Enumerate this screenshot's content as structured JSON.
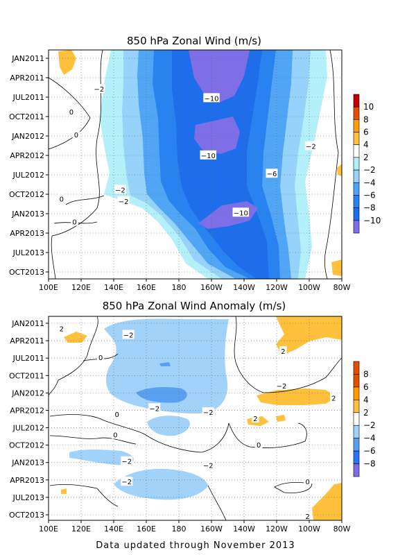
{
  "footer": "Data updated through November 2013",
  "colors": {
    "neg2": "#b4f0fa",
    "neg4": "#96d2fa",
    "neg6": "#50a5f5",
    "neg8": "#2882f0",
    "neg10": "#1e6eeb",
    "neg12": "#7f6fe6",
    "pos2": "#ffffff",
    "pos4": "#ffc03c",
    "pos6": "#ffa000",
    "pos8": "#e15000",
    "pos10": "#c00000",
    "anom_neg2": "#a0d2fa",
    "anom_neg4": "#5aa0f0",
    "anom_neg6": "#2878f0",
    "anom_neg8": "#7d6ee6",
    "anom_pos2": "#ffffff",
    "anom_pos4": "#ffc03c",
    "anom_pos6": "#ff9a00",
    "anom_pos8": "#e15000"
  },
  "chart_data": [
    {
      "type": "heatmap",
      "title": "850 hPa Zonal Wind (m/s)",
      "x_ticks": [
        "100E",
        "120E",
        "140E",
        "160E",
        "180",
        "160W",
        "140W",
        "120W",
        "100W",
        "80W"
      ],
      "y_ticks": [
        "JAN2011",
        "APR2011",
        "JUL2011",
        "OCT2011",
        "JAN2012",
        "APR2012",
        "JUL2012",
        "OCT2012",
        "JAN2013",
        "APR2013",
        "JUL2013",
        "OCT2013"
      ],
      "colorbar": [
        "10",
        "8",
        "6",
        "4",
        "2",
        "−2",
        "−4",
        "−6",
        "−8",
        "−10"
      ],
      "contour_labels": [
        {
          "text": "−10",
          "lon": 200,
          "t": 0.21
        },
        {
          "text": "−10",
          "lon": 198,
          "t": 0.46
        },
        {
          "text": "−10",
          "lon": 218,
          "t": 0.71
        },
        {
          "text": "−6",
          "lon": 237,
          "t": 0.54
        },
        {
          "text": "−2",
          "lon": 261,
          "t": 0.42
        },
        {
          "text": "−2",
          "lon": 144,
          "t": 0.61
        },
        {
          "text": "−2",
          "lon": 131,
          "t": 0.17
        },
        {
          "text": "−2",
          "lon": 146,
          "t": 0.66
        },
        {
          "text": "0",
          "lon": 114,
          "t": 0.27
        },
        {
          "text": "0",
          "lon": 117,
          "t": 0.37
        },
        {
          "text": "0",
          "lon": 108,
          "t": 0.65
        },
        {
          "text": "0",
          "lon": 116,
          "t": 0.75
        }
      ]
    },
    {
      "type": "heatmap",
      "title": "850 hPa Zonal Wind Anomaly (m/s)",
      "x_ticks": [
        "100E",
        "120E",
        "140E",
        "160E",
        "180",
        "160W",
        "140W",
        "120W",
        "100W",
        "80W"
      ],
      "y_ticks": [
        "JAN2011",
        "APR2011",
        "JUL2011",
        "OCT2011",
        "JAN2012",
        "APR2012",
        "JUL2012",
        "OCT2012",
        "JAN2013",
        "APR2013",
        "JUL2013",
        "OCT2013"
      ],
      "colorbar": [
        "8",
        "6",
        "4",
        "2",
        "−2",
        "−4",
        "−6",
        "−8"
      ],
      "contour_labels": [
        {
          "text": "2",
          "lon": 108,
          "t": 0.06
        },
        {
          "text": "−2",
          "lon": 149,
          "t": 0.09
        },
        {
          "text": "2",
          "lon": 244,
          "t": 0.17
        },
        {
          "text": "0",
          "lon": 132,
          "t": 0.2
        },
        {
          "text": "−2",
          "lon": 243,
          "t": 0.34
        },
        {
          "text": "2",
          "lon": 275,
          "t": 0.4
        },
        {
          "text": "−2",
          "lon": 165,
          "t": 0.45
        },
        {
          "text": "−2",
          "lon": 198,
          "t": 0.47
        },
        {
          "text": "2",
          "lon": 227,
          "t": 0.5
        },
        {
          "text": "0",
          "lon": 142,
          "t": 0.48
        },
        {
          "text": "0",
          "lon": 141,
          "t": 0.58
        },
        {
          "text": "0",
          "lon": 229,
          "t": 0.63
        },
        {
          "text": "−2",
          "lon": 148,
          "t": 0.71
        },
        {
          "text": "−2",
          "lon": 198,
          "t": 0.73
        },
        {
          "text": "−2",
          "lon": 148,
          "t": 0.81
        },
        {
          "text": "0",
          "lon": 259,
          "t": 0.81
        },
        {
          "text": "2",
          "lon": 259,
          "t": 0.98
        }
      ]
    }
  ]
}
